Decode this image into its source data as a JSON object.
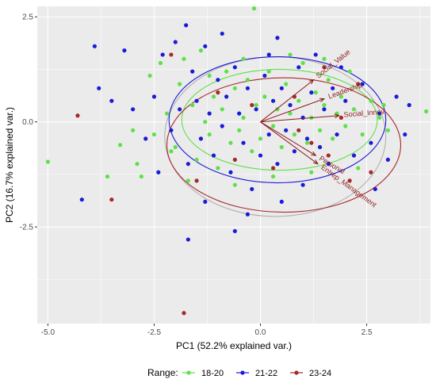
{
  "chart_data": {
    "type": "scatter",
    "xlabel": "PC1 (52.2% explained var.)",
    "ylabel": "PC2 (16.7% explained var.)",
    "xlim": [
      -5.25,
      4.0
    ],
    "ylim": [
      -4.8,
      2.75
    ],
    "x_ticks": [
      -5.0,
      -2.5,
      0.0,
      2.5
    ],
    "x_tick_labels": [
      "-5.0",
      "-2.5",
      "0.0",
      "2.5"
    ],
    "y_ticks": [
      2.5,
      0.0,
      -2.5
    ],
    "y_tick_labels": [
      "2.5",
      "0.0",
      "-2.5"
    ],
    "grid": true,
    "legend": {
      "title": "Range:",
      "placement": "bottom",
      "entries": [
        "18-20",
        "21-22",
        "23-24"
      ]
    },
    "colors": {
      "18-20": "#5ee04a",
      "21-22": "#1a1ad9",
      "23-24": "#a52a2a",
      "panel": "#ebebeb",
      "grid": "#ffffff",
      "arrow": "#8b1a1a",
      "ellipse_outer": "#b0b0b0"
    },
    "series": [
      {
        "name": "18-20",
        "points": [
          [
            -5.0,
            -0.95
          ],
          [
            -3.3,
            -0.55
          ],
          [
            -3.0,
            -0.2
          ],
          [
            -2.9,
            -1.0
          ],
          [
            -2.6,
            1.1
          ],
          [
            -2.5,
            -0.3
          ],
          [
            -2.35,
            1.4
          ],
          [
            -2.2,
            0.2
          ],
          [
            -2.0,
            -0.6
          ],
          [
            -1.9,
            0.9
          ],
          [
            -1.8,
            1.5
          ],
          [
            -1.6,
            0.4
          ],
          [
            -1.5,
            -0.9
          ],
          [
            -1.4,
            1.7
          ],
          [
            -1.3,
            0.0
          ],
          [
            -1.2,
            -0.3
          ],
          [
            -1.1,
            0.6
          ],
          [
            -1.0,
            -1.1
          ],
          [
            -0.9,
            0.3
          ],
          [
            -0.8,
            1.2
          ],
          [
            -0.7,
            -0.5
          ],
          [
            -0.6,
            0.8
          ],
          [
            -0.5,
            -0.2
          ],
          [
            -0.4,
            0.1
          ],
          [
            -0.3,
            1.0
          ],
          [
            -0.2,
            -0.7
          ],
          [
            -0.15,
            2.7
          ],
          [
            -0.1,
            0.4
          ],
          [
            0.0,
            -0.4
          ],
          [
            0.1,
            0.6
          ],
          [
            0.2,
            1.2
          ],
          [
            0.3,
            -0.1
          ],
          [
            0.4,
            0.3
          ],
          [
            0.5,
            -0.6
          ],
          [
            0.6,
            0.9
          ],
          [
            0.7,
            0.2
          ],
          [
            0.8,
            -0.3
          ],
          [
            0.9,
            0.5
          ],
          [
            1.0,
            1.4
          ],
          [
            1.1,
            -0.5
          ],
          [
            1.2,
            0.1
          ],
          [
            1.3,
            0.7
          ],
          [
            1.4,
            -0.2
          ],
          [
            1.5,
            0.4
          ],
          [
            1.6,
            1.0
          ],
          [
            1.7,
            -0.4
          ],
          [
            1.8,
            0.2
          ],
          [
            1.9,
            0.6
          ],
          [
            2.0,
            -0.1
          ],
          [
            2.1,
            1.2
          ],
          [
            2.2,
            0.3
          ],
          [
            2.4,
            -0.3
          ],
          [
            2.6,
            0.5
          ],
          [
            2.8,
            0.1
          ],
          [
            3.0,
            -0.2
          ],
          [
            3.9,
            0.25
          ],
          [
            1.2,
            -1.2
          ],
          [
            0.3,
            -1.3
          ],
          [
            -0.6,
            -1.5
          ],
          [
            -1.7,
            -1.4
          ],
          [
            -2.8,
            -1.3
          ],
          [
            2.3,
            -1.1
          ],
          [
            -0.4,
            1.5
          ],
          [
            0.7,
            1.6
          ],
          [
            -1.2,
            1.1
          ],
          [
            1.5,
            1.5
          ],
          [
            -2.1,
            -0.7
          ],
          [
            -3.6,
            -1.3
          ],
          [
            2.9,
            0.4
          ]
        ]
      },
      {
        "name": "21-22",
        "points": [
          [
            -4.2,
            -1.85
          ],
          [
            -3.9,
            1.8
          ],
          [
            -3.8,
            0.8
          ],
          [
            -3.5,
            0.5
          ],
          [
            -3.2,
            1.7
          ],
          [
            -3.0,
            0.3
          ],
          [
            -2.7,
            -0.4
          ],
          [
            -2.5,
            0.6
          ],
          [
            -2.3,
            1.6
          ],
          [
            -2.1,
            -0.2
          ],
          [
            -1.9,
            0.3
          ],
          [
            -1.75,
            2.3
          ],
          [
            -1.7,
            -1.0
          ],
          [
            -1.6,
            1.2
          ],
          [
            -1.5,
            0.5
          ],
          [
            -1.4,
            -0.4
          ],
          [
            -1.3,
            1.8
          ],
          [
            -1.2,
            0.2
          ],
          [
            -1.1,
            -0.8
          ],
          [
            -1.0,
            1.0
          ],
          [
            -0.9,
            -0.1
          ],
          [
            -0.8,
            0.6
          ],
          [
            -0.7,
            -1.2
          ],
          [
            -0.6,
            1.3
          ],
          [
            -0.5,
            0.2
          ],
          [
            -0.4,
            -0.5
          ],
          [
            -0.3,
            0.8
          ],
          [
            -0.2,
            -1.6
          ],
          [
            -0.1,
            0.3
          ],
          [
            0.0,
            -0.8
          ],
          [
            0.1,
            1.1
          ],
          [
            0.2,
            -0.3
          ],
          [
            0.3,
            0.5
          ],
          [
            0.4,
            -1.0
          ],
          [
            0.5,
            0.8
          ],
          [
            0.6,
            -0.2
          ],
          [
            0.7,
            0.4
          ],
          [
            0.8,
            -0.7
          ],
          [
            0.9,
            1.3
          ],
          [
            1.0,
            0.1
          ],
          [
            1.1,
            -0.4
          ],
          [
            1.2,
            0.7
          ],
          [
            1.3,
            1.6
          ],
          [
            1.4,
            -0.6
          ],
          [
            1.5,
            0.3
          ],
          [
            1.6,
            -1.0
          ],
          [
            1.7,
            0.8
          ],
          [
            1.8,
            -0.3
          ],
          [
            2.0,
            0.5
          ],
          [
            2.2,
            -0.8
          ],
          [
            2.4,
            0.9
          ],
          [
            2.6,
            -0.5
          ],
          [
            2.8,
            0.2
          ],
          [
            3.0,
            -0.9
          ],
          [
            3.2,
            0.6
          ],
          [
            3.4,
            -0.3
          ],
          [
            3.5,
            0.4
          ],
          [
            -1.7,
            -2.8
          ],
          [
            -0.3,
            -2.2
          ],
          [
            0.5,
            -1.9
          ],
          [
            -2.4,
            -1.2
          ],
          [
            -0.9,
            2.1
          ],
          [
            0.4,
            2.0
          ],
          [
            -2.0,
            1.9
          ],
          [
            1.9,
            1.3
          ],
          [
            2.7,
            -1.6
          ],
          [
            -0.6,
            -2.6
          ],
          [
            1.0,
            -1.5
          ],
          [
            -1.3,
            -1.9
          ],
          [
            0.2,
            1.6
          ]
        ]
      },
      {
        "name": "23-24",
        "points": [
          [
            -4.3,
            0.15
          ],
          [
            -3.5,
            -1.85
          ],
          [
            -2.1,
            1.6
          ],
          [
            -1.8,
            -4.55
          ],
          [
            -1.5,
            -1.4
          ],
          [
            -1.0,
            0.7
          ],
          [
            -0.6,
            -0.9
          ],
          [
            0.3,
            -1.1
          ],
          [
            0.8,
            0.6
          ],
          [
            1.2,
            -0.5
          ],
          [
            1.5,
            1.3
          ],
          [
            1.9,
            0.1
          ],
          [
            2.1,
            -1.4
          ],
          [
            2.3,
            0.9
          ],
          [
            2.6,
            -1.2
          ],
          [
            0.9,
            -0.2
          ],
          [
            -0.2,
            0.4
          ],
          [
            1.6,
            -0.8
          ]
        ]
      }
    ],
    "arrows": [
      {
        "label": "Social_Value",
        "x": 1.25,
        "y": 1.0
      },
      {
        "label": "Leadership",
        "x": 1.5,
        "y": 0.55
      },
      {
        "label": "Social_Innov",
        "x": 1.85,
        "y": 0.15
      },
      {
        "label": "Personal",
        "x": 1.3,
        "y": -0.8
      },
      {
        "label": "Entrep_Management",
        "x": 1.35,
        "y": -1.0
      }
    ],
    "ellipses": [
      {
        "group": "outer",
        "cx": 0.35,
        "cy": -0.35,
        "rx": 2.6,
        "ry": 1.9
      },
      {
        "group": "18-20",
        "cx": 0.45,
        "cy": 0.05,
        "rx": 2.3,
        "ry": 1.2
      },
      {
        "group": "21-22",
        "cx": 0.4,
        "cy": 0.05,
        "rx": 2.55,
        "ry": 1.5
      },
      {
        "group": "23-24",
        "cx": 0.55,
        "cy": -0.55,
        "rx": 2.75,
        "ry": 1.6
      }
    ]
  }
}
